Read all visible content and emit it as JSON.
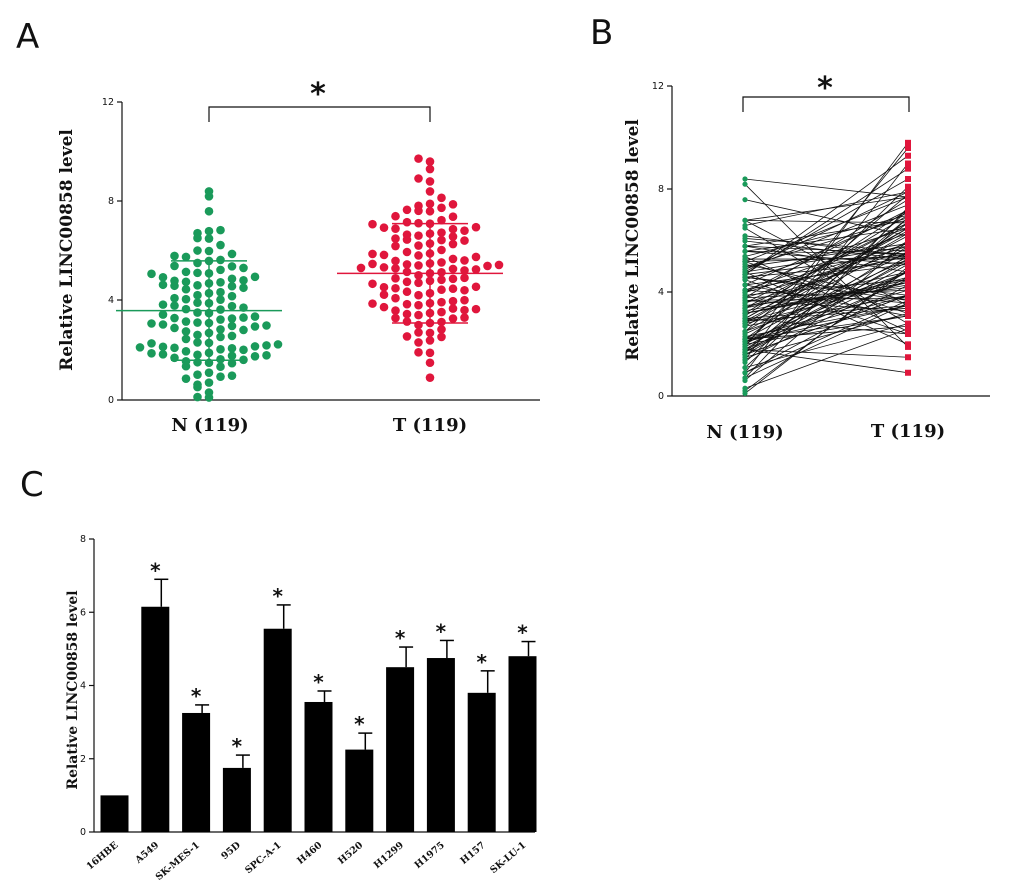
{
  "panels": {
    "A": {
      "letter": "A"
    },
    "B": {
      "letter": "B"
    },
    "C": {
      "letter": "C"
    }
  },
  "chart_data": [
    {
      "panel": "A",
      "type": "scatter",
      "ylabel": "Relative LINC00858 level",
      "ylim": [
        0,
        12
      ],
      "yticks": [
        0,
        4,
        8,
        12
      ],
      "categories": [
        "N (119)",
        "T (119)"
      ],
      "colors": {
        "N (119)": "#1a9a5a",
        "T (119)": "#e0163c"
      },
      "summary": [
        {
          "category": "N (119)",
          "mean": 3.6,
          "sd_low": 1.6,
          "sd_high": 5.6
        },
        {
          "category": "T (119)",
          "mean": 5.1,
          "sd_low": 3.1,
          "sd_high": 7.1
        }
      ],
      "significance": "*"
    },
    {
      "panel": "B",
      "type": "line",
      "ylabel": "Relative LINC00858 level",
      "ylim": [
        0,
        12
      ],
      "yticks": [
        0,
        4,
        8,
        12
      ],
      "categories": [
        "N (119)",
        "T (119)"
      ],
      "colors": {
        "N (119)": "#1a9a5a",
        "T (119)": "#e0163c",
        "lines": "#111111"
      },
      "n_pairs": 119,
      "significance": "*"
    },
    {
      "panel": "C",
      "type": "bar",
      "ylabel": "Relative LINC00858 level",
      "ylim": [
        0,
        8
      ],
      "yticks": [
        0,
        2,
        4,
        6,
        8
      ],
      "categories": [
        "16HBE",
        "A549",
        "SK-MES-1",
        "95D",
        "SPC-A-1",
        "H460",
        "H520",
        "H1299",
        "H1975",
        "H157",
        "SK-LU-1"
      ],
      "values": [
        1.0,
        6.15,
        3.25,
        1.75,
        5.55,
        3.55,
        2.25,
        4.5,
        4.75,
        3.8,
        4.8
      ],
      "errors": [
        0,
        0.75,
        0.22,
        0.35,
        0.65,
        0.3,
        0.45,
        0.55,
        0.48,
        0.6,
        0.4
      ],
      "significance": [
        "",
        "*",
        "*",
        "*",
        "*",
        "*",
        "*",
        "*",
        "*",
        "*",
        "*"
      ],
      "bar_color": "#000000"
    }
  ]
}
